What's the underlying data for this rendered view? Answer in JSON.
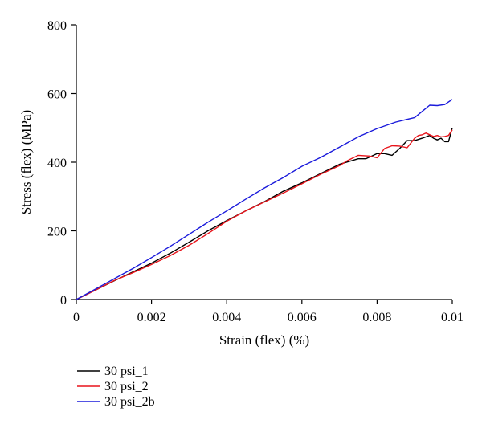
{
  "chart_data": {
    "type": "line",
    "title": "",
    "xlabel": "Strain (flex) (%)",
    "ylabel": "Stress (flex) (MPa)",
    "xlim": [
      0,
      0.01
    ],
    "ylim": [
      0,
      800
    ],
    "xticks": [
      0,
      0.002,
      0.004,
      0.006,
      0.008,
      0.01
    ],
    "xtick_labels": [
      "0",
      "0.002",
      "0.004",
      "0.006",
      "0.008",
      "0.01"
    ],
    "yticks": [
      0,
      200,
      400,
      600,
      800
    ],
    "ytick_labels": [
      "0",
      "200",
      "400",
      "600",
      "800"
    ],
    "grid": false,
    "legend_position": "bottom-left",
    "series": [
      {
        "name": "30 psi_1",
        "color": "#000000",
        "x": [
          0,
          0.0005,
          0.001,
          0.0015,
          0.002,
          0.0025,
          0.003,
          0.0035,
          0.004,
          0.0045,
          0.005,
          0.0055,
          0.006,
          0.0065,
          0.007,
          0.0075,
          0.0077,
          0.008,
          0.0082,
          0.0084,
          0.0086,
          0.0088,
          0.009,
          0.0092,
          0.0094,
          0.0095,
          0.0096,
          0.0097,
          0.0098,
          0.0099,
          0.01
        ],
        "y": [
          0,
          27,
          54,
          80,
          106,
          135,
          167,
          200,
          230,
          258,
          285,
          315,
          340,
          367,
          394,
          410,
          410,
          425,
          425,
          420,
          440,
          463,
          463,
          470,
          478,
          470,
          465,
          470,
          460,
          460,
          500
        ]
      },
      {
        "name": "30 psi_2",
        "color": "#e8141b",
        "x": [
          0,
          0.0005,
          0.001,
          0.0015,
          0.002,
          0.0025,
          0.003,
          0.0035,
          0.004,
          0.0045,
          0.005,
          0.0055,
          0.006,
          0.0065,
          0.007,
          0.0072,
          0.0075,
          0.0078,
          0.008,
          0.0082,
          0.0084,
          0.0086,
          0.0088,
          0.009,
          0.0091,
          0.0092,
          0.0093,
          0.0094,
          0.0095,
          0.0096,
          0.0097,
          0.0098,
          0.0099,
          0.01
        ],
        "y": [
          0,
          27,
          55,
          78,
          102,
          128,
          158,
          192,
          228,
          258,
          284,
          310,
          337,
          365,
          390,
          404,
          420,
          418,
          413,
          440,
          448,
          447,
          442,
          470,
          478,
          480,
          485,
          480,
          475,
          478,
          474,
          475,
          478,
          494
        ]
      },
      {
        "name": "30 psi_2b",
        "color": "#1a1adb",
        "x": [
          0,
          0.0005,
          0.001,
          0.0015,
          0.002,
          0.0025,
          0.003,
          0.0035,
          0.004,
          0.0045,
          0.005,
          0.0055,
          0.006,
          0.0065,
          0.007,
          0.0075,
          0.008,
          0.0085,
          0.009,
          0.0092,
          0.0094,
          0.0096,
          0.0098,
          0.01
        ],
        "y": [
          0,
          30,
          60,
          90,
          122,
          155,
          190,
          225,
          258,
          292,
          325,
          355,
          388,
          414,
          444,
          474,
          498,
          517,
          530,
          548,
          566,
          565,
          568,
          583
        ]
      }
    ]
  }
}
